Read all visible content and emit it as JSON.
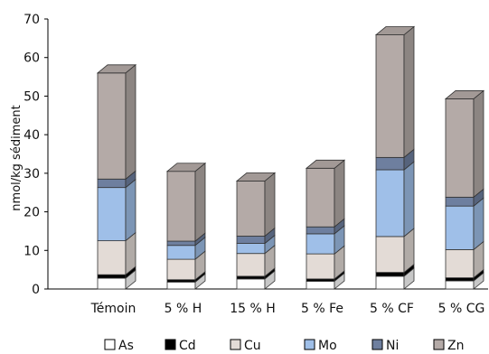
{
  "chart_data": {
    "type": "bar",
    "stacked": true,
    "style": "3d",
    "title": "",
    "xlabel": "",
    "ylabel": "nmol/kg sédiment",
    "ylim": [
      0,
      70
    ],
    "yticks": [
      0,
      10,
      20,
      30,
      40,
      50,
      60,
      70
    ],
    "grid": false,
    "legend_position": "bottom",
    "categories": [
      "Témoin",
      "5 % H",
      "15 % H",
      "5 % Fe",
      "5 % CF",
      "5 % CG"
    ],
    "series": [
      {
        "name": "As",
        "color": "#ffffff",
        "values": [
          2.8,
          1.8,
          2.6,
          2.0,
          3.3,
          2.1
        ]
      },
      {
        "name": "Cd",
        "color": "#000000",
        "values": [
          0.9,
          0.6,
          0.7,
          0.6,
          1.0,
          0.8
        ]
      },
      {
        "name": "Cu",
        "color": "#e3dbd6",
        "values": [
          8.8,
          5.3,
          5.9,
          6.5,
          9.3,
          7.3
        ]
      },
      {
        "name": "Mo",
        "color": "#9fbfe8",
        "values": [
          13.8,
          3.6,
          2.6,
          5.2,
          17.3,
          11.3
        ]
      },
      {
        "name": "Ni",
        "color": "#6e7f9f",
        "values": [
          2.2,
          1.1,
          1.9,
          1.8,
          3.2,
          2.3
        ]
      },
      {
        "name": "Zn",
        "color": "#b4aaa7",
        "values": [
          27.5,
          18.1,
          14.3,
          15.2,
          31.8,
          25.5
        ]
      }
    ]
  }
}
